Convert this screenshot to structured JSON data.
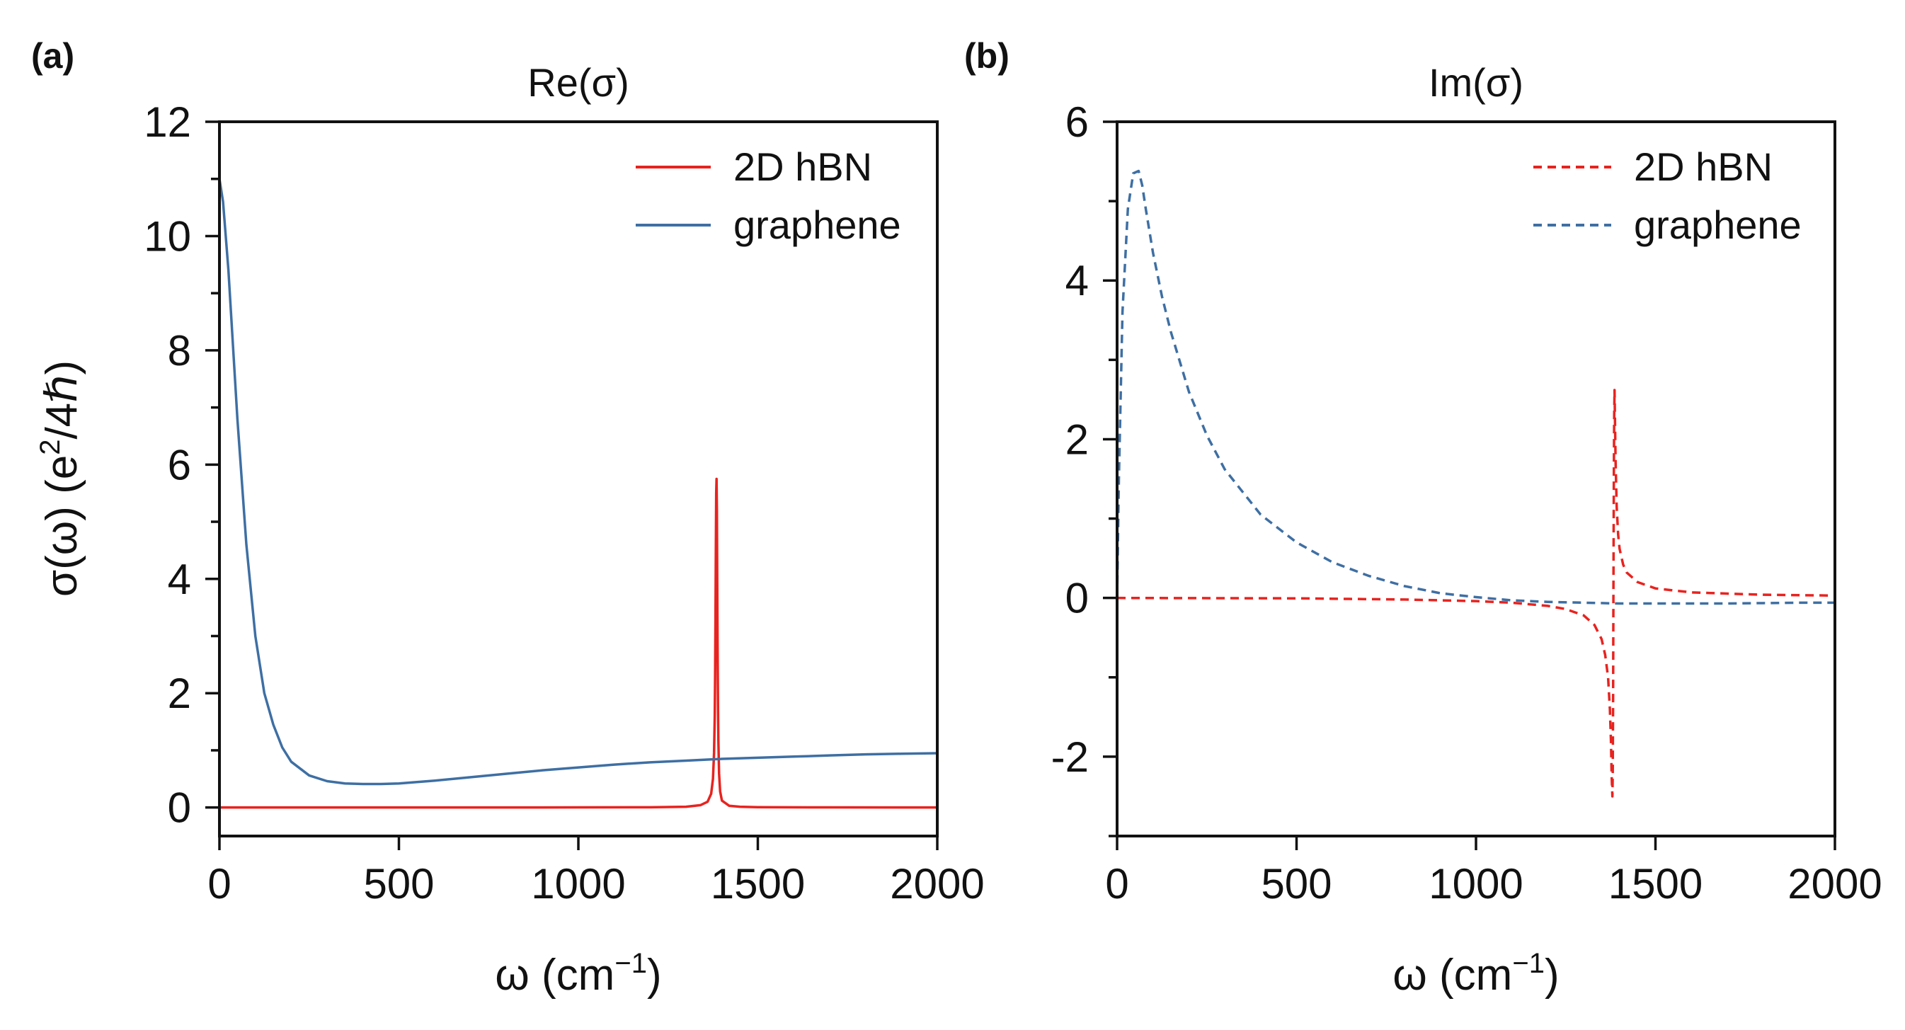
{
  "chart_data": [
    {
      "panel": "(a)",
      "type": "line",
      "title": "Re(σ)",
      "xlabel": "ω (cm",
      "xlabel_sup": "−1",
      "xlabel_end": ")",
      "ylabel": "σ(ω) (e",
      "ylabel_sup": "2",
      "ylabel_end": "/4ℏ)",
      "xlim": [
        0,
        2000
      ],
      "ylim": [
        -0.5,
        12
      ],
      "xticks": [
        0,
        500,
        1000,
        1500,
        2000
      ],
      "xtick_labels": [
        "0",
        "500",
        "1000",
        "1500",
        "2000"
      ],
      "yticks": [
        0,
        2,
        4,
        6,
        8,
        10,
        12
      ],
      "ytick_labels": [
        "0",
        "2",
        "4",
        "6",
        "8",
        "10",
        "12"
      ],
      "legend_position": "top-right",
      "series": [
        {
          "name": "2D hBN",
          "color": "#e8231f",
          "style": "solid",
          "x": [
            0,
            500,
            1000,
            1200,
            1300,
            1340,
            1360,
            1370,
            1375,
            1378,
            1380,
            1381,
            1382,
            1383,
            1384,
            1385,
            1386,
            1387,
            1388,
            1389,
            1390,
            1392,
            1395,
            1400,
            1420,
            1450,
            1500,
            1700,
            2000
          ],
          "y": [
            0,
            0,
            0.001,
            0.004,
            0.012,
            0.04,
            0.1,
            0.24,
            0.5,
            0.95,
            1.6,
            2.3,
            3.3,
            4.5,
            5.5,
            5.75,
            5.2,
            3.9,
            2.7,
            1.8,
            1.2,
            0.6,
            0.28,
            0.12,
            0.03,
            0.012,
            0.005,
            0.001,
            0
          ]
        },
        {
          "name": "graphene",
          "color": "#3e6fa3",
          "style": "solid",
          "x": [
            0,
            10,
            25,
            50,
            75,
            100,
            125,
            150,
            175,
            200,
            250,
            300,
            350,
            400,
            450,
            500,
            600,
            700,
            800,
            900,
            1000,
            1100,
            1200,
            1300,
            1400,
            1500,
            1600,
            1700,
            1800,
            1900,
            2000
          ],
          "y": [
            11.0,
            10.6,
            9.4,
            6.8,
            4.6,
            3.0,
            2.0,
            1.45,
            1.05,
            0.8,
            0.56,
            0.46,
            0.42,
            0.41,
            0.41,
            0.42,
            0.47,
            0.53,
            0.59,
            0.65,
            0.7,
            0.75,
            0.79,
            0.82,
            0.85,
            0.87,
            0.89,
            0.91,
            0.93,
            0.94,
            0.95
          ]
        }
      ]
    },
    {
      "panel": "(b)",
      "type": "line",
      "title": "Im(σ)",
      "xlabel": "ω (cm",
      "xlabel_sup": "−1",
      "xlabel_end": ")",
      "xlim": [
        0,
        2000
      ],
      "ylim": [
        -3,
        6
      ],
      "xticks": [
        0,
        500,
        1000,
        1500,
        2000
      ],
      "xtick_labels": [
        "0",
        "500",
        "1000",
        "1500",
        "2000"
      ],
      "yticks": [
        -2,
        0,
        2,
        4,
        6
      ],
      "ytick_labels": [
        "-2",
        "0",
        "2",
        "4",
        "6"
      ],
      "legend_position": "top-right",
      "series": [
        {
          "name": "2D hBN",
          "color": "#e8231f",
          "style": "dashed",
          "x": [
            0,
            500,
            800,
            1000,
            1100,
            1200,
            1250,
            1300,
            1330,
            1350,
            1360,
            1368,
            1373,
            1376,
            1378,
            1380,
            1381,
            1382,
            1383,
            1384,
            1385,
            1386,
            1387,
            1389,
            1392,
            1396,
            1400,
            1410,
            1420,
            1450,
            1500,
            1600,
            1800,
            2000
          ],
          "y": [
            0,
            -0.005,
            -0.02,
            -0.04,
            -0.06,
            -0.1,
            -0.14,
            -0.22,
            -0.34,
            -0.52,
            -0.72,
            -1.0,
            -1.4,
            -1.8,
            -2.25,
            -2.5,
            -2.2,
            -1.3,
            0.2,
            1.5,
            2.3,
            2.62,
            2.3,
            1.7,
            1.15,
            0.8,
            0.62,
            0.42,
            0.32,
            0.2,
            0.12,
            0.07,
            0.04,
            0.03
          ]
        },
        {
          "name": "graphene",
          "color": "#3e6fa3",
          "style": "dashed",
          "x": [
            0,
            5,
            15,
            30,
            45,
            60,
            70,
            80,
            100,
            125,
            150,
            200,
            250,
            300,
            400,
            500,
            600,
            700,
            800,
            900,
            1000,
            1100,
            1200,
            1300,
            1400,
            1500,
            1600,
            1700,
            1800,
            1900,
            2000
          ],
          "y": [
            0,
            1.5,
            3.6,
            4.9,
            5.35,
            5.38,
            5.2,
            4.9,
            4.35,
            3.8,
            3.35,
            2.6,
            2.05,
            1.62,
            1.05,
            0.7,
            0.45,
            0.28,
            0.15,
            0.06,
            0.01,
            -0.03,
            -0.05,
            -0.06,
            -0.07,
            -0.07,
            -0.07,
            -0.07,
            -0.065,
            -0.06,
            -0.06
          ]
        }
      ]
    }
  ]
}
